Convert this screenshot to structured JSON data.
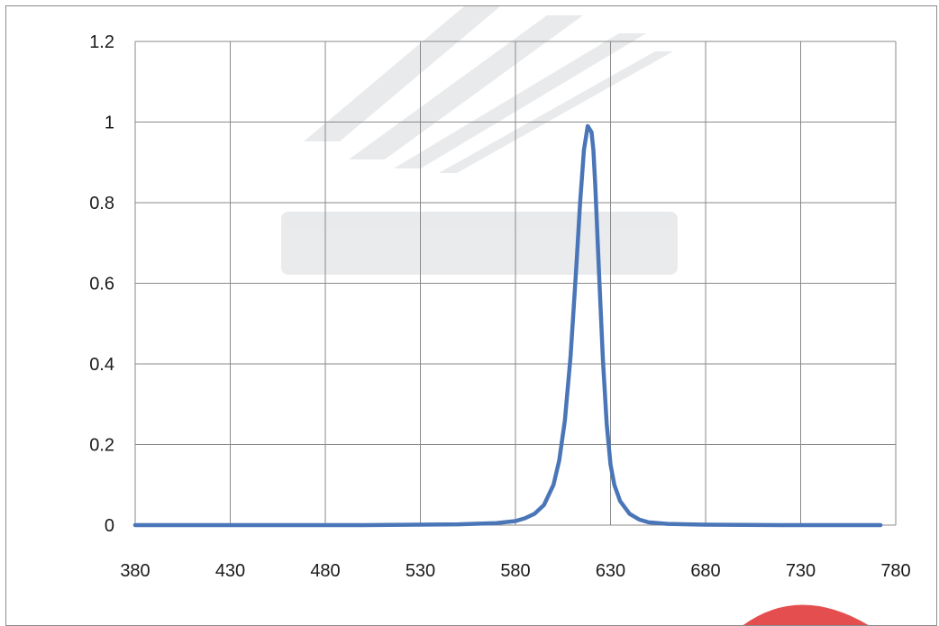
{
  "chart_data": {
    "type": "line",
    "title": "",
    "xlabel": "",
    "ylabel": "",
    "xlim": [
      380,
      780
    ],
    "ylim": [
      0,
      1.2
    ],
    "x_ticks": [
      380,
      430,
      480,
      530,
      580,
      630,
      680,
      730,
      780
    ],
    "y_ticks": [
      0,
      0.2,
      0.4,
      0.6,
      0.8,
      1,
      1.2
    ],
    "x_tick_labels": [
      "380",
      "430",
      "480",
      "530",
      "580",
      "630",
      "680",
      "730",
      "780"
    ],
    "y_tick_labels": [
      "0",
      "0.2",
      "0.4",
      "0.6",
      "0.8",
      "1",
      "1.2"
    ],
    "grid": true,
    "legend": "none",
    "series": [
      {
        "color": "#4a76b8",
        "x": [
          380,
          400,
          450,
          500,
          550,
          570,
          580,
          585,
          590,
          595,
          600,
          603,
          606,
          609,
          612,
          614,
          616,
          618,
          620,
          621,
          622,
          624,
          626,
          628,
          630,
          632,
          635,
          640,
          645,
          650,
          660,
          680,
          720,
          772
        ],
        "y": [
          0,
          0,
          0,
          0,
          0.002,
          0.005,
          0.01,
          0.017,
          0.028,
          0.05,
          0.1,
          0.16,
          0.26,
          0.42,
          0.64,
          0.8,
          0.93,
          0.99,
          0.975,
          0.93,
          0.84,
          0.62,
          0.41,
          0.25,
          0.15,
          0.1,
          0.06,
          0.028,
          0.014,
          0.007,
          0.003,
          0.001,
          0,
          0
        ]
      }
    ]
  }
}
